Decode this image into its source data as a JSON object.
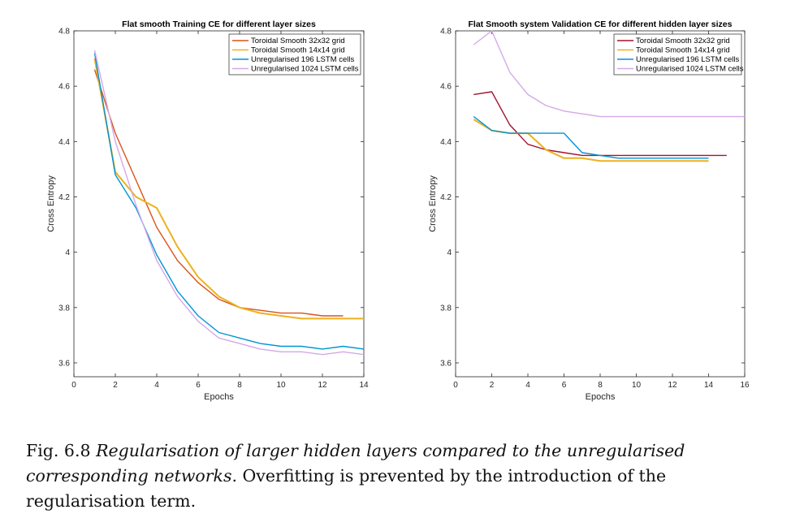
{
  "chart_data": [
    {
      "type": "line",
      "title": "Flat smooth Training CE for different layer sizes",
      "xlabel": "Epochs",
      "ylabel": "Cross Entropy",
      "xlim": [
        0,
        14
      ],
      "ylim": [
        3.55,
        4.8
      ],
      "xticks": [
        0,
        2,
        4,
        6,
        8,
        10,
        12,
        14
      ],
      "yticks": [
        3.6,
        3.8,
        4,
        4.2,
        4.4,
        4.6,
        4.8
      ],
      "ytick_labels": [
        "3.6",
        "3.8",
        "4",
        "4.2",
        "4.4",
        "4.6",
        "4.8"
      ],
      "legend_position": "top-right",
      "grid": false,
      "series": [
        {
          "name": "Toroidal Smooth 32x32 grid",
          "color": "#d95319",
          "x": [
            1,
            2,
            3,
            4,
            5,
            6,
            7,
            8,
            9,
            10,
            11,
            12,
            13
          ],
          "y": [
            4.66,
            4.43,
            4.26,
            4.09,
            3.97,
            3.89,
            3.83,
            3.8,
            3.79,
            3.78,
            3.78,
            3.77,
            3.77
          ]
        },
        {
          "name": "Toroidal Smooth 14x14 grid",
          "color": "#edb120",
          "x": [
            1,
            2,
            3,
            4,
            5,
            6,
            7,
            8,
            9,
            10,
            11,
            12,
            13,
            14
          ],
          "y": [
            4.7,
            4.29,
            4.2,
            4.16,
            4.02,
            3.91,
            3.84,
            3.8,
            3.78,
            3.77,
            3.76,
            3.76,
            3.76,
            3.76
          ]
        },
        {
          "name": "Unregularised 196 LSTM cells",
          "color": "#0094d6",
          "x": [
            1,
            2,
            3,
            4,
            5,
            6,
            7,
            8,
            9,
            10,
            11,
            12,
            13,
            14
          ],
          "y": [
            4.72,
            4.28,
            4.16,
            3.99,
            3.86,
            3.77,
            3.71,
            3.69,
            3.67,
            3.66,
            3.66,
            3.65,
            3.66,
            3.65
          ]
        },
        {
          "name": "Unregularised 1024 LSTM cells",
          "color": "#d4a8e8",
          "x": [
            1,
            2,
            3,
            4,
            5,
            6,
            7,
            8,
            9,
            10,
            11,
            12,
            13,
            14
          ],
          "y": [
            4.73,
            4.4,
            4.17,
            3.97,
            3.84,
            3.75,
            3.69,
            3.67,
            3.65,
            3.64,
            3.64,
            3.63,
            3.64,
            3.63
          ]
        }
      ]
    },
    {
      "type": "line",
      "title": "Flat Smooth system Validation CE for different hidden layer sizes",
      "xlabel": "Epochs",
      "ylabel": "Cross Entropy",
      "xlim": [
        0,
        16
      ],
      "ylim": [
        3.55,
        4.8
      ],
      "xticks": [
        0,
        2,
        4,
        6,
        8,
        10,
        12,
        14,
        16
      ],
      "yticks": [
        3.6,
        3.8,
        4,
        4.2,
        4.4,
        4.6,
        4.8
      ],
      "ytick_labels": [
        "3.6",
        "3.8",
        "4",
        "4.2",
        "4.4",
        "4.6",
        "4.8"
      ],
      "legend_position": "top-right",
      "grid": false,
      "series": [
        {
          "name": "Toroidal Smooth 32x32 grid",
          "color": "#a2142f",
          "x": [
            1,
            2,
            3,
            4,
            5,
            6,
            7,
            8,
            9,
            10,
            11,
            12,
            13,
            14,
            15
          ],
          "y": [
            4.57,
            4.58,
            4.46,
            4.39,
            4.37,
            4.36,
            4.35,
            4.35,
            4.35,
            4.35,
            4.35,
            4.35,
            4.35,
            4.35,
            4.35
          ]
        },
        {
          "name": "Toroidal Smooth 14x14 grid",
          "color": "#edb120",
          "x": [
            1,
            2,
            3,
            4,
            5,
            6,
            7,
            8,
            9,
            10,
            11,
            12,
            13,
            14
          ],
          "y": [
            4.48,
            4.44,
            4.43,
            4.43,
            4.37,
            4.34,
            4.34,
            4.33,
            4.33,
            4.33,
            4.33,
            4.33,
            4.33,
            4.33
          ]
        },
        {
          "name": "Unregularised 196 LSTM cells",
          "color": "#0094d6",
          "x": [
            1,
            2,
            3,
            4,
            5,
            6,
            7,
            8,
            9,
            10,
            11,
            12,
            13,
            14
          ],
          "y": [
            4.49,
            4.44,
            4.43,
            4.43,
            4.43,
            4.43,
            4.36,
            4.35,
            4.34,
            4.34,
            4.34,
            4.34,
            4.34,
            4.34
          ]
        },
        {
          "name": "Unregularised 1024 LSTM cells",
          "color": "#d4a8e8",
          "x": [
            1,
            2,
            3,
            4,
            5,
            6,
            7,
            8,
            9,
            10,
            11,
            12,
            13,
            14,
            15,
            16
          ],
          "y": [
            4.75,
            4.8,
            4.65,
            4.57,
            4.53,
            4.51,
            4.5,
            4.49,
            4.49,
            4.49,
            4.49,
            4.49,
            4.49,
            4.49,
            4.49,
            4.49
          ]
        }
      ]
    }
  ],
  "caption": {
    "label": "Fig. 6.8 ",
    "italic": "Regularisation of larger hidden layers compared to the unregularised corresponding networks.",
    "text": " Overfitting is prevented by the introduction of the regularisation term."
  }
}
